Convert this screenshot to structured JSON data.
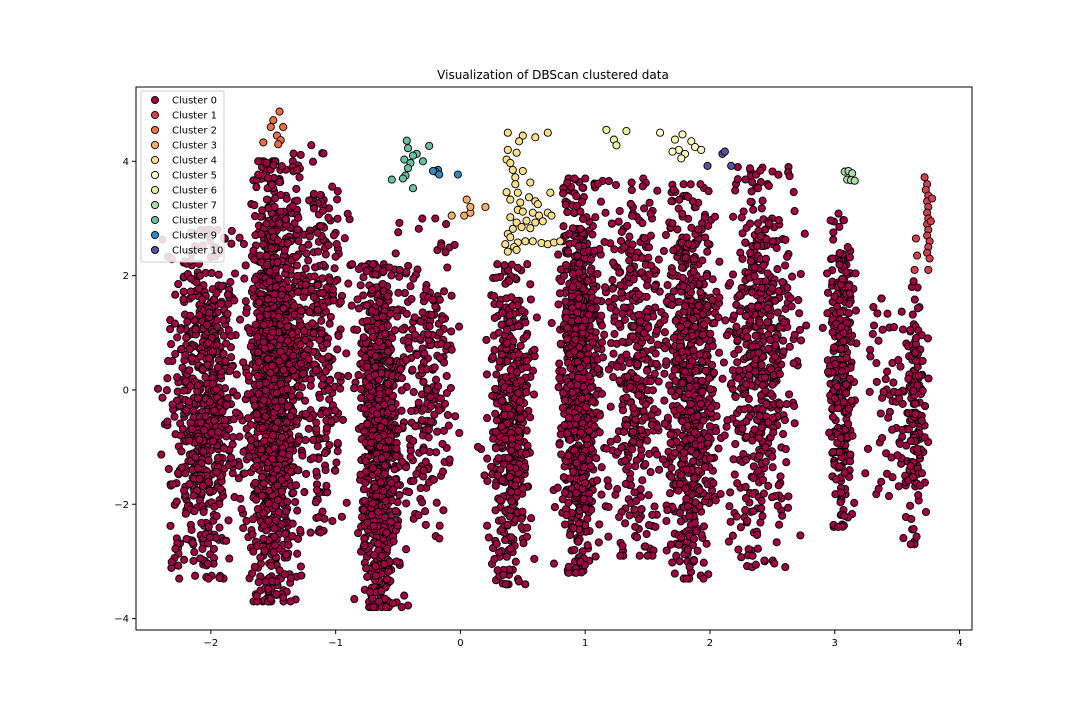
{
  "chart_data": {
    "type": "scatter",
    "title": "Visualization of DBScan clustered data",
    "xlabel": "",
    "ylabel": "",
    "xlim": [
      -2.6,
      4.1
    ],
    "ylim": [
      -4.2,
      5.3
    ],
    "xticks": [
      -2,
      -1,
      0,
      1,
      2,
      3,
      4
    ],
    "xtick_labels": [
      "−2",
      "−1",
      "0",
      "1",
      "2",
      "3",
      "4"
    ],
    "yticks": [
      -4,
      -2,
      0,
      2,
      4
    ],
    "ytick_labels": [
      "−4",
      "−2",
      "0",
      "2",
      "4"
    ],
    "grid": false,
    "legend_position": "top-left",
    "series": [
      {
        "name": "Cluster 0",
        "color": "#9e0142",
        "description": "dense vertical bands, approximately 6000 points",
        "bands": [
          {
            "x_center": -2.05,
            "x_spread": 0.22,
            "y_range": [
              -3.3,
              2.8
            ],
            "count": 700
          },
          {
            "x_center": -1.5,
            "x_spread": 0.15,
            "y_range": [
              -3.7,
              4.0
            ],
            "count": 1300
          },
          {
            "x_center": -1.15,
            "x_spread": 0.18,
            "y_range": [
              -2.5,
              4.3
            ],
            "count": 350
          },
          {
            "x_center": -0.65,
            "x_spread": 0.12,
            "y_range": [
              -3.8,
              2.2
            ],
            "count": 900
          },
          {
            "x_center": -0.3,
            "x_spread": 0.2,
            "y_range": [
              -2.6,
              3.0
            ],
            "count": 250
          },
          {
            "x_center": 0.4,
            "x_spread": 0.13,
            "y_range": [
              -3.4,
              2.2
            ],
            "count": 500
          },
          {
            "x_center": 0.95,
            "x_spread": 0.12,
            "y_range": [
              -3.2,
              3.7
            ],
            "count": 800
          },
          {
            "x_center": 1.4,
            "x_spread": 0.22,
            "y_range": [
              -2.9,
              3.7
            ],
            "count": 450
          },
          {
            "x_center": 1.85,
            "x_spread": 0.15,
            "y_range": [
              -3.3,
              3.6
            ],
            "count": 650
          },
          {
            "x_center": 2.4,
            "x_spread": 0.22,
            "y_range": [
              -3.1,
              3.9
            ],
            "count": 550
          },
          {
            "x_center": 3.05,
            "x_spread": 0.08,
            "y_range": [
              -2.4,
              3.1
            ],
            "count": 320
          },
          {
            "x_center": 3.5,
            "x_spread": 0.18,
            "y_range": [
              -2.3,
              1.6
            ],
            "count": 90
          },
          {
            "x_center": 3.65,
            "x_spread": 0.06,
            "y_range": [
              -2.7,
              1.9
            ],
            "count": 130
          }
        ]
      },
      {
        "name": "Cluster 1",
        "color": "#d53e4f",
        "points": [
          [
            3.72,
            3.72
          ],
          [
            3.74,
            3.6
          ],
          [
            3.73,
            3.5
          ],
          [
            3.75,
            3.4
          ],
          [
            3.74,
            3.3
          ],
          [
            3.75,
            3.2
          ],
          [
            3.74,
            3.1
          ],
          [
            3.75,
            3.0
          ],
          [
            3.74,
            2.9
          ],
          [
            3.75,
            2.8
          ],
          [
            3.74,
            2.7
          ],
          [
            3.76,
            2.6
          ],
          [
            3.75,
            2.5
          ],
          [
            3.74,
            2.4
          ],
          [
            3.76,
            2.3
          ],
          [
            3.75,
            2.1
          ],
          [
            3.65,
            2.65
          ],
          [
            3.66,
            2.35
          ],
          [
            3.64,
            2.1
          ],
          [
            3.78,
            3.35
          ],
          [
            3.77,
            2.95
          ]
        ]
      },
      {
        "name": "Cluster 2",
        "color": "#f46d43",
        "points": [
          [
            -1.45,
            4.87
          ],
          [
            -1.5,
            4.72
          ],
          [
            -1.52,
            4.6
          ],
          [
            -1.42,
            4.6
          ],
          [
            -1.47,
            4.45
          ],
          [
            -1.44,
            4.37
          ],
          [
            -1.46,
            4.3
          ],
          [
            -1.58,
            4.33
          ]
        ]
      },
      {
        "name": "Cluster 3",
        "color": "#fdae61",
        "points": [
          [
            -0.07,
            3.05
          ],
          [
            0.03,
            3.05
          ],
          [
            0.08,
            3.1
          ],
          [
            0.05,
            3.33
          ],
          [
            0.08,
            3.2
          ],
          [
            0.2,
            3.2
          ]
        ]
      },
      {
        "name": "Cluster 4",
        "color": "#fee08b",
        "points": [
          [
            0.38,
            4.5
          ],
          [
            0.5,
            4.45
          ],
          [
            0.47,
            4.35
          ],
          [
            0.38,
            4.2
          ],
          [
            0.45,
            4.15
          ],
          [
            0.37,
            4.03
          ],
          [
            0.4,
            3.97
          ],
          [
            0.42,
            3.85
          ],
          [
            0.5,
            3.83
          ],
          [
            0.44,
            3.72
          ],
          [
            0.44,
            3.6
          ],
          [
            0.56,
            3.63
          ],
          [
            0.37,
            3.46
          ],
          [
            0.46,
            3.45
          ],
          [
            0.55,
            3.37
          ],
          [
            0.4,
            3.33
          ],
          [
            0.48,
            3.28
          ],
          [
            0.6,
            3.3
          ],
          [
            0.62,
            3.25
          ],
          [
            0.46,
            3.15
          ],
          [
            0.5,
            3.12
          ],
          [
            0.58,
            3.1
          ],
          [
            0.63,
            3.05
          ],
          [
            0.7,
            3.1
          ],
          [
            0.4,
            3.02
          ],
          [
            0.45,
            2.93
          ],
          [
            0.53,
            2.96
          ],
          [
            0.6,
            2.93
          ],
          [
            0.66,
            2.95
          ],
          [
            0.42,
            2.82
          ],
          [
            0.49,
            2.85
          ],
          [
            0.56,
            2.83
          ],
          [
            0.38,
            2.73
          ],
          [
            0.4,
            2.67
          ],
          [
            0.46,
            2.58
          ],
          [
            0.52,
            2.6
          ],
          [
            0.36,
            2.55
          ],
          [
            0.43,
            2.5
          ],
          [
            0.45,
            2.45
          ],
          [
            0.38,
            2.42
          ],
          [
            0.58,
            2.6
          ],
          [
            0.65,
            2.57
          ],
          [
            0.7,
            2.55
          ],
          [
            0.75,
            2.58
          ],
          [
            0.8,
            2.6
          ],
          [
            0.72,
            3.45
          ],
          [
            0.7,
            4.5
          ],
          [
            0.6,
            4.42
          ],
          [
            0.73,
            3.05
          ]
        ]
      },
      {
        "name": "Cluster 5",
        "color": "#ffffbf",
        "points": [
          [
            1.6,
            4.5
          ],
          [
            1.72,
            4.38
          ],
          [
            1.78,
            4.47
          ],
          [
            1.85,
            4.35
          ],
          [
            1.75,
            4.2
          ],
          [
            1.8,
            4.13
          ],
          [
            1.77,
            4.05
          ],
          [
            1.7,
            4.17
          ],
          [
            1.88,
            4.25
          ],
          [
            1.93,
            4.2
          ]
        ]
      },
      {
        "name": "Cluster 6",
        "color": "#e6f598",
        "points": [
          [
            1.17,
            4.55
          ],
          [
            1.33,
            4.53
          ],
          [
            1.23,
            4.38
          ],
          [
            1.25,
            4.28
          ]
        ]
      },
      {
        "name": "Cluster 7",
        "color": "#abdda4",
        "points": [
          [
            3.08,
            3.82
          ],
          [
            3.11,
            3.83
          ],
          [
            3.14,
            3.79
          ],
          [
            3.1,
            3.68
          ],
          [
            3.13,
            3.67
          ],
          [
            3.16,
            3.66
          ]
        ]
      },
      {
        "name": "Cluster 8",
        "color": "#66c2a5",
        "points": [
          [
            -0.43,
            4.36
          ],
          [
            -0.42,
            4.23
          ],
          [
            -0.25,
            4.27
          ],
          [
            -0.35,
            4.13
          ],
          [
            -0.38,
            4.1
          ],
          [
            -0.45,
            4.03
          ],
          [
            -0.4,
            3.97
          ],
          [
            -0.42,
            3.88
          ],
          [
            -0.44,
            3.75
          ],
          [
            -0.46,
            3.7
          ],
          [
            -0.38,
            3.53
          ],
          [
            -0.55,
            3.68
          ],
          [
            -0.3,
            4.0
          ]
        ]
      },
      {
        "name": "Cluster 9",
        "color": "#3288bd",
        "points": [
          [
            -0.18,
            3.85
          ],
          [
            -0.2,
            3.82
          ],
          [
            -0.17,
            3.77
          ],
          [
            -0.22,
            3.83
          ],
          [
            -0.02,
            3.77
          ]
        ]
      },
      {
        "name": "Cluster 10",
        "color": "#5e4fa2",
        "points": [
          [
            2.1,
            4.13
          ],
          [
            2.12,
            4.17
          ],
          [
            1.98,
            3.92
          ],
          [
            2.17,
            3.92
          ]
        ]
      }
    ]
  }
}
